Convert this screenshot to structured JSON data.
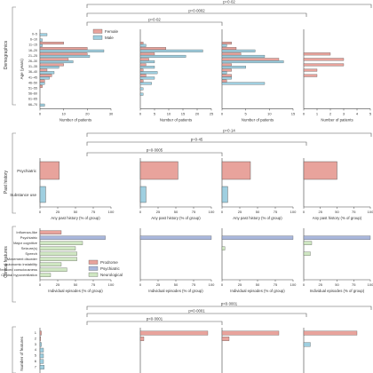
{
  "colors": {
    "female": "#e8a39c",
    "male": "#9fcfe0",
    "prodrome": "#e8a39c",
    "psychiatric": "#a9b7dc",
    "neurological": "#cfe6c2",
    "axis": "#444444",
    "bracket": "#555555"
  },
  "sections": {
    "demographics": "Demographics",
    "past_history": "Past history",
    "clinical_features": "Clinical features"
  },
  "brackets": [
    {
      "label": "p=0·02"
    },
    {
      "label": "p=0·0002"
    },
    {
      "label": "p=0·02"
    },
    {
      "label": "p=0·14"
    },
    {
      "label": "p=0·45"
    },
    {
      "label": "p=0·0005"
    },
    {
      "label": "p<0·0001"
    },
    {
      "label": "p<0·0001"
    },
    {
      "label": "p<0·0001"
    }
  ],
  "chart_data": [
    {
      "type": "bar",
      "panel": "demographics",
      "orientation": "horizontal",
      "ylabel": "Age (years)",
      "xlabel": "Number of patients",
      "categories": [
        "0–5",
        "6–10",
        "11–15",
        "16–20",
        "21–25",
        "26–30",
        "31–35",
        "36–40",
        "41–45",
        "46–50",
        "51–55",
        "56–60",
        "61–65",
        "66–70"
      ],
      "legend": [
        "Female",
        "Male"
      ],
      "groups": [
        {
          "xlim": [
            0,
            30
          ],
          "xticks": [
            0,
            10,
            20,
            30
          ],
          "series": [
            {
              "name": "Female",
              "values": [
                0,
                0,
                10,
                20,
                20,
                12,
                10,
                3,
                5,
                2,
                1,
                0,
                0,
                0
              ]
            },
            {
              "name": "Male",
              "values": [
                3,
                1,
                1,
                27,
                21,
                14,
                8,
                6,
                4,
                2,
                0,
                0,
                0,
                2
              ]
            }
          ]
        },
        {
          "xlim": [
            0,
            25
          ],
          "xticks": [
            0,
            5,
            10,
            15,
            20,
            25
          ],
          "series": [
            {
              "name": "Female",
              "values": [
                0,
                0,
                1,
                9,
                5,
                3,
                2,
                1,
                2,
                1,
                0,
                0,
                0,
                0
              ]
            },
            {
              "name": "Male",
              "values": [
                0,
                0,
                2,
                22,
                16,
                5,
                5,
                6,
                5,
                4,
                1,
                1,
                0,
                0
              ]
            }
          ]
        },
        {
          "xlim": [
            0,
            15
          ],
          "xticks": [
            0,
            5,
            10,
            15
          ],
          "series": [
            {
              "name": "Female",
              "values": [
                0,
                0,
                2,
                3,
                4,
                12,
                2,
                2,
                2,
                1,
                0,
                0,
                0,
                0
              ]
            },
            {
              "name": "Male",
              "values": [
                0,
                0,
                1,
                7,
                9,
                13,
                5,
                1,
                2,
                9,
                0,
                0,
                0,
                0
              ]
            }
          ]
        },
        {
          "xlim": [
            0,
            5
          ],
          "xticks": [
            0,
            1,
            2,
            3,
            4,
            5
          ],
          "series": [
            {
              "name": "Female",
              "values": [
                0,
                0,
                0,
                0,
                2,
                3,
                3,
                1,
                1,
                0,
                0,
                0,
                0,
                0
              ]
            },
            {
              "name": "Male",
              "values": [
                0,
                0,
                0,
                0,
                0,
                0,
                0,
                0,
                0,
                0,
                0,
                0,
                0,
                0
              ]
            }
          ]
        }
      ]
    },
    {
      "type": "bar",
      "panel": "past_history",
      "orientation": "horizontal",
      "xlabel": "Any past history (% of group)",
      "categories": [
        "Psychiatric",
        "Substance use"
      ],
      "xlim": [
        0,
        100
      ],
      "xticks": [
        0,
        25,
        50,
        75,
        100
      ],
      "groups": [
        {
          "values": [
            27,
            8
          ]
        },
        {
          "values": [
            53,
            8
          ]
        },
        {
          "values": [
            40,
            8
          ]
        },
        {
          "values": [
            50,
            0
          ]
        }
      ],
      "colors": [
        "female",
        "male"
      ]
    },
    {
      "type": "bar",
      "panel": "clinical_features",
      "orientation": "horizontal",
      "xlabel": "Individual episodes (% of group)",
      "categories": [
        "Influenza-like",
        "Psychiatric",
        "Major cognitive",
        "Seizure(s)",
        "Speech",
        "Movement disorder",
        "Autonomic instability",
        "Reduced consciousness",
        "Central hypoventilation"
      ],
      "category_types": [
        "prodrome",
        "psychiatric",
        "neurological",
        "neurological",
        "neurological",
        "neurological",
        "neurological",
        "neurological",
        "neurological"
      ],
      "legend": [
        "Prodrome",
        "Psychiatric",
        "Neurological"
      ],
      "xlim": [
        0,
        100
      ],
      "xticks": [
        0,
        25,
        50,
        75,
        100
      ],
      "groups": [
        {
          "values": [
            30,
            92,
            60,
            50,
            52,
            52,
            30,
            38,
            15
          ]
        },
        {
          "values": [
            0,
            100,
            0,
            0,
            0,
            0,
            0,
            0,
            0
          ]
        },
        {
          "values": [
            0,
            100,
            0,
            4,
            0,
            0,
            0,
            0,
            0
          ]
        },
        {
          "values": [
            0,
            100,
            12,
            0,
            10,
            0,
            0,
            0,
            0
          ]
        }
      ]
    },
    {
      "type": "bar",
      "panel": "number_of_features",
      "orientation": "horizontal",
      "ylabel": "Number of features",
      "categories": [
        "1",
        "2",
        "3",
        "4",
        "5",
        "6",
        "7"
      ],
      "groups": [
        {
          "values": [
            2,
            1,
            2,
            5,
            5,
            5,
            6
          ]
        },
        {
          "values": [
            95,
            5,
            0,
            0,
            0,
            0,
            0
          ]
        },
        {
          "values": [
            80,
            10,
            0,
            0,
            0,
            0,
            0
          ]
        },
        {
          "values": [
            80,
            0,
            10,
            0,
            0,
            0,
            0
          ]
        }
      ],
      "colors": [
        "female",
        "female",
        "male",
        "male",
        "male",
        "male",
        "male"
      ]
    }
  ]
}
